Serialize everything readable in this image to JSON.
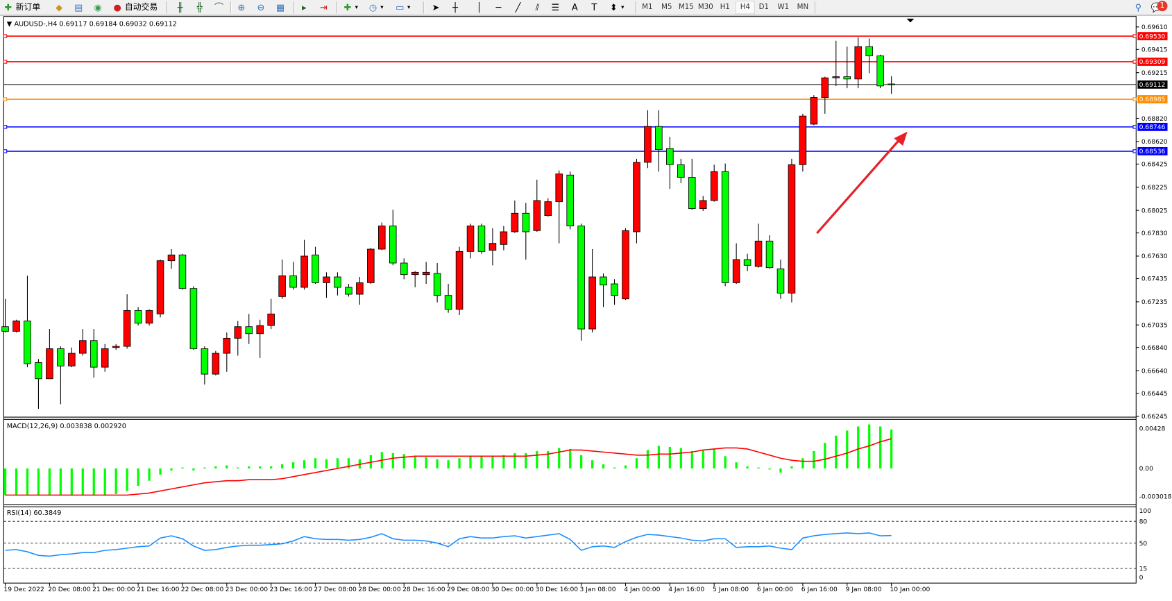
{
  "toolbar": {
    "new_order": "新订单",
    "auto_trading": "自动交易",
    "timeframes": [
      "M1",
      "M5",
      "M15",
      "M30",
      "H1",
      "H4",
      "D1",
      "W1",
      "MN"
    ],
    "active_timeframe": "H4",
    "notification_count": "1",
    "icons": [
      "new-order-icon",
      "gold-icon",
      "market-watch-icon",
      "signal-icon",
      "auto-trading-icon",
      "bar-chart-icon",
      "candle-chart-icon",
      "line-chart-icon",
      "zoom-in-icon",
      "zoom-out-icon",
      "tile-windows-icon",
      "autoscroll-icon",
      "chart-shift-icon",
      "add-indicator-icon",
      "period-clock-icon",
      "template-icon",
      "cursor-icon",
      "crosshair-icon",
      "vertical-line-icon",
      "horizontal-line-icon",
      "trendline-icon",
      "equidistant-channel-icon",
      "fibonacci-icon",
      "text-icon",
      "text-label-icon",
      "arrows-icon",
      "search-icon",
      "chat-icon"
    ]
  },
  "chart": {
    "header": "AUDUSD-,H4  0.69117 0.69184 0.69032 0.69112",
    "colors": {
      "bull": "#ff0000",
      "bear": "#00ff00",
      "outline": "#000000",
      "macd_hist": "#00ff00",
      "macd_signal": "#ff0000",
      "rsi": "#1e90ff",
      "arrow": "#e8202a"
    },
    "price_ticks": [
      "0.69610",
      "0.69415",
      "0.69215",
      "0.68820",
      "0.68620",
      "0.68425",
      "0.68225",
      "0.68025",
      "0.67830",
      "0.67630",
      "0.67435",
      "0.67235",
      "0.67035",
      "0.66840",
      "0.66640",
      "0.66445",
      "0.66245"
    ],
    "price_range": [
      0.66245,
      0.6961
    ],
    "hlines": [
      {
        "price": 0.6953,
        "label": "0.69530",
        "color": "#ff0000"
      },
      {
        "price": 0.69309,
        "label": "0.69309",
        "color": "#ff0000"
      },
      {
        "price": 0.68985,
        "label": "0.68985",
        "color": "#ff8c00"
      },
      {
        "price": 0.68746,
        "label": "0.68746",
        "color": "#0000ff"
      },
      {
        "price": 0.68536,
        "label": "0.68536",
        "color": "#0000ff"
      }
    ],
    "bid": {
      "price": 0.69112,
      "label": "0.69112"
    },
    "time_labels": [
      "19 Dec 2022",
      "20 Dec 08:00",
      "21 Dec 00:00",
      "21 Dec 16:00",
      "22 Dec 08:00",
      "23 Dec 00:00",
      "23 Dec 16:00",
      "27 Dec 08:00",
      "28 Dec 00:00",
      "28 Dec 16:00",
      "29 Dec 08:00",
      "30 Dec 00:00",
      "30 Dec 16:00",
      "3 Jan 08:00",
      "4 Jan 00:00",
      "4 Jan 16:00",
      "5 Jan 08:00",
      "6 Jan 00:00",
      "6 Jan 16:00",
      "9 Jan 08:00",
      "10 Jan 00:00"
    ],
    "candles": [
      [
        0.6702,
        0.6726,
        0.6697,
        0.6698
      ],
      [
        0.6698,
        0.6708,
        0.6697,
        0.6707
      ],
      [
        0.6707,
        0.6746,
        0.6667,
        0.667
      ],
      [
        0.6671,
        0.6674,
        0.6631,
        0.6657
      ],
      [
        0.6657,
        0.67,
        0.6657,
        0.6683
      ],
      [
        0.6683,
        0.6685,
        0.6635,
        0.6668
      ],
      [
        0.6668,
        0.6684,
        0.6667,
        0.6679
      ],
      [
        0.6679,
        0.67,
        0.6677,
        0.669
      ],
      [
        0.669,
        0.67,
        0.6658,
        0.6667
      ],
      [
        0.6667,
        0.6687,
        0.6663,
        0.6683
      ],
      [
        0.6684,
        0.6687,
        0.6682,
        0.6685
      ],
      [
        0.6685,
        0.673,
        0.6683,
        0.6716
      ],
      [
        0.6716,
        0.6719,
        0.6703,
        0.6705
      ],
      [
        0.6705,
        0.6717,
        0.6703,
        0.6716
      ],
      [
        0.6713,
        0.676,
        0.671,
        0.6759
      ],
      [
        0.6759,
        0.6769,
        0.6752,
        0.6764
      ],
      [
        0.6764,
        0.6765,
        0.6734,
        0.6735
      ],
      [
        0.6735,
        0.6737,
        0.6682,
        0.6683
      ],
      [
        0.6683,
        0.6685,
        0.6652,
        0.6661
      ],
      [
        0.6661,
        0.6681,
        0.666,
        0.6679
      ],
      [
        0.6679,
        0.6697,
        0.6663,
        0.6692
      ],
      [
        0.6692,
        0.6707,
        0.6677,
        0.6702
      ],
      [
        0.6702,
        0.6713,
        0.6687,
        0.6696
      ],
      [
        0.6696,
        0.6708,
        0.6675,
        0.6703
      ],
      [
        0.6703,
        0.6726,
        0.67,
        0.6713
      ],
      [
        0.6728,
        0.676,
        0.6726,
        0.6746
      ],
      [
        0.6746,
        0.6758,
        0.6734,
        0.6736
      ],
      [
        0.6736,
        0.6777,
        0.6734,
        0.6763
      ],
      [
        0.6764,
        0.6771,
        0.6739,
        0.674
      ],
      [
        0.674,
        0.6749,
        0.6727,
        0.6745
      ],
      [
        0.6745,
        0.6749,
        0.6729,
        0.6736
      ],
      [
        0.6736,
        0.6739,
        0.6728,
        0.673
      ],
      [
        0.673,
        0.6745,
        0.6721,
        0.674
      ],
      [
        0.674,
        0.677,
        0.6739,
        0.6769
      ],
      [
        0.6769,
        0.6792,
        0.6768,
        0.6789
      ],
      [
        0.6789,
        0.6803,
        0.6755,
        0.6757
      ],
      [
        0.6757,
        0.6761,
        0.6743,
        0.6747
      ],
      [
        0.6747,
        0.675,
        0.6736,
        0.6749
      ],
      [
        0.6747,
        0.6758,
        0.6739,
        0.6749
      ],
      [
        0.6748,
        0.6757,
        0.6723,
        0.6729
      ],
      [
        0.6729,
        0.6739,
        0.6714,
        0.6717
      ],
      [
        0.6717,
        0.6771,
        0.6712,
        0.6767
      ],
      [
        0.6767,
        0.6791,
        0.6761,
        0.6789
      ],
      [
        0.6789,
        0.6791,
        0.6765,
        0.6767
      ],
      [
        0.6768,
        0.6787,
        0.6755,
        0.6774
      ],
      [
        0.6773,
        0.6789,
        0.6768,
        0.6784
      ],
      [
        0.6784,
        0.6811,
        0.6783,
        0.68
      ],
      [
        0.68,
        0.6809,
        0.676,
        0.6784
      ],
      [
        0.6785,
        0.6829,
        0.6784,
        0.6811
      ],
      [
        0.6798,
        0.6813,
        0.6797,
        0.681
      ],
      [
        0.681,
        0.6837,
        0.6774,
        0.6834
      ],
      [
        0.6833,
        0.6836,
        0.6786,
        0.6789
      ],
      [
        0.6789,
        0.6791,
        0.669,
        0.67
      ],
      [
        0.67,
        0.6769,
        0.6697,
        0.6745
      ],
      [
        0.6745,
        0.6748,
        0.6719,
        0.6738
      ],
      [
        0.6739,
        0.6743,
        0.6721,
        0.6729
      ],
      [
        0.6726,
        0.6787,
        0.6725,
        0.6785
      ],
      [
        0.6784,
        0.6847,
        0.6774,
        0.6844
      ],
      [
        0.6844,
        0.6889,
        0.6839,
        0.6875
      ],
      [
        0.6875,
        0.6889,
        0.6836,
        0.6855
      ],
      [
        0.6856,
        0.6866,
        0.6821,
        0.6842
      ],
      [
        0.6842,
        0.6847,
        0.6826,
        0.6831
      ],
      [
        0.6831,
        0.6847,
        0.6803,
        0.6804
      ],
      [
        0.6804,
        0.6815,
        0.6802,
        0.6811
      ],
      [
        0.6811,
        0.6842,
        0.681,
        0.6836
      ],
      [
        0.6836,
        0.6843,
        0.6737,
        0.674
      ],
      [
        0.674,
        0.6774,
        0.6739,
        0.676
      ],
      [
        0.676,
        0.6765,
        0.675,
        0.6755
      ],
      [
        0.6754,
        0.6791,
        0.6753,
        0.6776
      ],
      [
        0.6776,
        0.6781,
        0.6752,
        0.6753
      ],
      [
        0.6752,
        0.676,
        0.6726,
        0.6731
      ],
      [
        0.6731,
        0.6847,
        0.6723,
        0.6842
      ],
      [
        0.6842,
        0.6886,
        0.6836,
        0.6884
      ],
      [
        0.6877,
        0.6902,
        0.6876,
        0.69
      ],
      [
        0.69,
        0.6918,
        0.6886,
        0.6917
      ],
      [
        0.6917,
        0.6949,
        0.691,
        0.6918
      ],
      [
        0.6918,
        0.6944,
        0.6908,
        0.6916
      ],
      [
        0.6916,
        0.6952,
        0.6908,
        0.6944
      ],
      [
        0.6944,
        0.6951,
        0.6921,
        0.6936
      ],
      [
        0.6936,
        0.6937,
        0.6908,
        0.691
      ],
      [
        0.69117,
        0.69184,
        0.69032,
        0.69112
      ]
    ]
  },
  "macd": {
    "label": "MACD(12,26,9) 0.003838 0.002920",
    "ticks": [
      "0.00428",
      "0.00",
      "-0.003018"
    ],
    "range": [
      -0.003018,
      0.00428
    ],
    "histogram": [
      -0.0026,
      -0.0026,
      -0.0026,
      -0.0026,
      -0.0026,
      -0.0026,
      -0.0026,
      -0.0026,
      -0.0026,
      -0.0026,
      -0.0025,
      -0.0022,
      -0.0017,
      -0.0012,
      -0.0006,
      -0.0002,
      0.0001,
      -0.0002,
      0.0001,
      0.0002,
      0.0003,
      0.0001,
      0.0002,
      0.0002,
      0.0002,
      0.0004,
      0.0006,
      0.0008,
      0.001,
      0.0009,
      0.001,
      0.001,
      0.0009,
      0.0013,
      0.0016,
      0.0015,
      0.0014,
      0.0012,
      0.0011,
      0.0009,
      0.0008,
      0.001,
      0.0012,
      0.0012,
      0.0012,
      0.0013,
      0.0015,
      0.0015,
      0.0017,
      0.0017,
      0.002,
      0.0019,
      0.0013,
      0.0008,
      0.0004,
      0.0001,
      0.0003,
      0.001,
      0.0018,
      0.0022,
      0.0021,
      0.002,
      0.0017,
      0.0018,
      0.0019,
      0.0012,
      0.0006,
      0.0002,
      0.0001,
      -0.0001,
      -0.0004,
      0.0002,
      0.001,
      0.0017,
      0.0025,
      0.0032,
      0.0037,
      0.0041,
      0.0043,
      0.0041,
      0.0038
    ],
    "signal": [
      -0.0026,
      -0.0026,
      -0.0026,
      -0.0026,
      -0.0026,
      -0.0026,
      -0.0026,
      -0.0026,
      -0.0026,
      -0.0026,
      -0.0026,
      -0.0026,
      -0.0025,
      -0.0024,
      -0.0022,
      -0.002,
      -0.0018,
      -0.0016,
      -0.0014,
      -0.0013,
      -0.0012,
      -0.0012,
      -0.0011,
      -0.0011,
      -0.0011,
      -0.001,
      -0.0008,
      -0.0006,
      -0.0004,
      -0.0002,
      0.0,
      0.0002,
      0.0004,
      0.0006,
      0.0008,
      0.001,
      0.0011,
      0.0012,
      0.0012,
      0.0012,
      0.0012,
      0.0012,
      0.0012,
      0.0012,
      0.0012,
      0.0012,
      0.0012,
      0.0012,
      0.0013,
      0.0014,
      0.0016,
      0.0018,
      0.0018,
      0.0017,
      0.0016,
      0.0015,
      0.0014,
      0.0013,
      0.0013,
      0.0014,
      0.0014,
      0.0015,
      0.0016,
      0.0018,
      0.0019,
      0.002,
      0.002,
      0.0019,
      0.0016,
      0.0013,
      0.001,
      0.0008,
      0.0007,
      0.0007,
      0.0009,
      0.0012,
      0.0015,
      0.0019,
      0.0022,
      0.0026,
      0.0029
    ]
  },
  "rsi": {
    "label": "RSI(14) 60.3849",
    "ticks": [
      "100",
      "80",
      "50",
      "15",
      "0"
    ],
    "levels": [
      80,
      50,
      15
    ],
    "values": [
      40,
      41,
      38,
      33,
      32,
      34,
      35,
      37,
      37,
      40,
      41,
      43,
      45,
      46,
      57,
      60,
      56,
      46,
      40,
      41,
      44,
      46,
      47,
      47,
      48,
      49,
      53,
      59,
      56,
      55,
      55,
      54,
      55,
      58,
      63,
      56,
      54,
      54,
      53,
      50,
      45,
      56,
      59,
      57,
      57,
      59,
      60,
      57,
      59,
      61,
      63,
      55,
      40,
      45,
      46,
      44,
      52,
      58,
      62,
      61,
      59,
      57,
      54,
      53,
      56,
      56,
      44,
      45,
      45,
      46,
      43,
      41,
      57,
      60,
      62,
      63,
      64,
      63,
      64,
      60,
      60.38
    ]
  }
}
